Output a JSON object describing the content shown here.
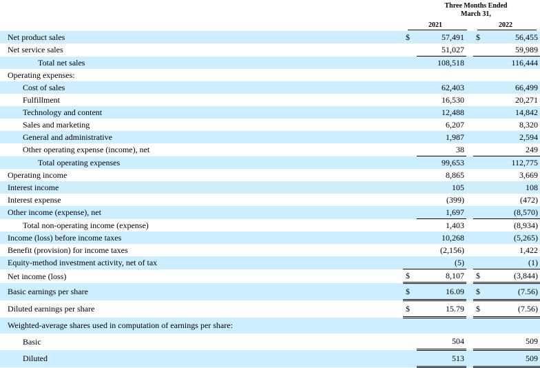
{
  "header": {
    "title_line1": "Three Months Ended",
    "title_line2": "March 31,",
    "year1": "2021",
    "year2": "2022"
  },
  "rows": [
    {
      "label": "Net product sales",
      "c1": "$",
      "v1": "57,491",
      "c2": "$",
      "v2": "56,455"
    },
    {
      "label": "Net service sales",
      "c1": "",
      "v1": "51,027",
      "c2": "",
      "v2": "59,989"
    },
    {
      "label": "Total net sales",
      "c1": "",
      "v1": "108,518",
      "c2": "",
      "v2": "116,444"
    },
    {
      "label": "Operating expenses:",
      "c1": "",
      "v1": "",
      "c2": "",
      "v2": ""
    },
    {
      "label": "Cost of sales",
      "c1": "",
      "v1": "62,403",
      "c2": "",
      "v2": "66,499"
    },
    {
      "label": "Fulfillment",
      "c1": "",
      "v1": "16,530",
      "c2": "",
      "v2": "20,271"
    },
    {
      "label": "Technology and content",
      "c1": "",
      "v1": "12,488",
      "c2": "",
      "v2": "14,842"
    },
    {
      "label": "Sales and marketing",
      "c1": "",
      "v1": "6,207",
      "c2": "",
      "v2": "8,320"
    },
    {
      "label": "General and administrative",
      "c1": "",
      "v1": "1,987",
      "c2": "",
      "v2": "2,594"
    },
    {
      "label": "Other operating expense (income), net",
      "c1": "",
      "v1": "38",
      "c2": "",
      "v2": "249"
    },
    {
      "label": "Total operating expenses",
      "c1": "",
      "v1": "99,653",
      "c2": "",
      "v2": "112,775"
    },
    {
      "label": "Operating income",
      "c1": "",
      "v1": "8,865",
      "c2": "",
      "v2": "3,669"
    },
    {
      "label": "Interest income",
      "c1": "",
      "v1": "105",
      "c2": "",
      "v2": "108"
    },
    {
      "label": "Interest expense",
      "c1": "",
      "v1": "(399)",
      "c2": "",
      "v2": "(472)"
    },
    {
      "label": "Other income (expense), net",
      "c1": "",
      "v1": "1,697",
      "c2": "",
      "v2": "(8,570)"
    },
    {
      "label": "Total non-operating income (expense)",
      "c1": "",
      "v1": "1,403",
      "c2": "",
      "v2": "(8,934)"
    },
    {
      "label": "Income (loss) before income taxes",
      "c1": "",
      "v1": "10,268",
      "c2": "",
      "v2": "(5,265)"
    },
    {
      "label": "Benefit (provision) for income taxes",
      "c1": "",
      "v1": "(2,156)",
      "c2": "",
      "v2": "1,422"
    },
    {
      "label": "Equity-method investment activity, net of tax",
      "c1": "",
      "v1": "(5)",
      "c2": "",
      "v2": "(1)"
    },
    {
      "label": "Net income (loss)",
      "c1": "$",
      "v1": "8,107",
      "c2": "$",
      "v2": "(3,844)"
    },
    {
      "label": "Basic earnings per share",
      "c1": "$",
      "v1": "16.09",
      "c2": "$",
      "v2": "(7.56)"
    },
    {
      "label": "Diluted earnings per share",
      "c1": "$",
      "v1": "15.79",
      "c2": "$",
      "v2": "(7.56)"
    },
    {
      "label": "Weighted-average shares used in computation of earnings per share:",
      "c1": "",
      "v1": "",
      "c2": "",
      "v2": ""
    },
    {
      "label": "Basic",
      "c1": "",
      "v1": "504",
      "c2": "",
      "v2": "509"
    },
    {
      "label": "Diluted",
      "c1": "",
      "v1": "513",
      "c2": "",
      "v2": "509"
    }
  ]
}
